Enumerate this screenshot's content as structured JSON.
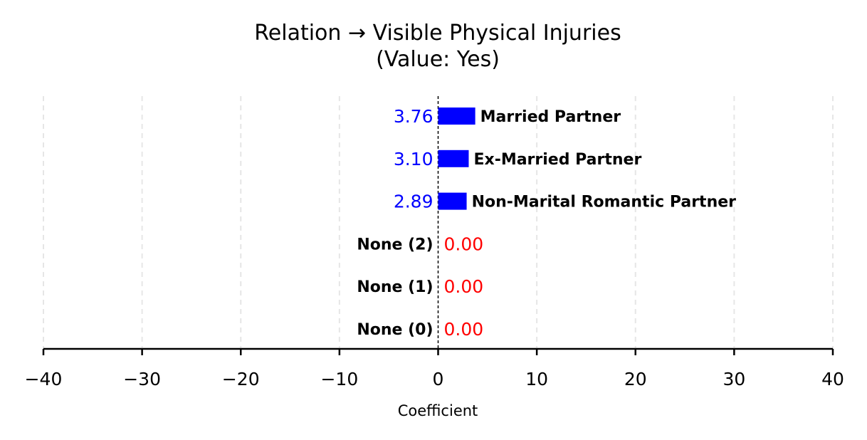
{
  "chart_data": {
    "type": "bar",
    "orientation": "horizontal",
    "title": "Relation → Visible Physical Injuries",
    "subtitle": "(Value: Yes)",
    "xlabel": "Coefficient",
    "ylabel": "",
    "xlim": [
      -40,
      40
    ],
    "xticks": [
      -40,
      -30,
      -20,
      -10,
      0,
      10,
      20,
      30,
      40
    ],
    "xtick_labels": [
      "−40",
      "−30",
      "−20",
      "−10",
      "0",
      "10",
      "20",
      "30",
      "40"
    ],
    "grid": "vertical dashed",
    "categories": [
      "Married Partner",
      "Ex-Married Partner",
      "Non-Marital Romantic Partner",
      "None (2)",
      "None (1)",
      "None (0)"
    ],
    "values": [
      3.76,
      3.1,
      2.89,
      0.0,
      0.0,
      0.0
    ],
    "value_labels": [
      "3.76",
      "3.10",
      "2.89",
      "0.00",
      "0.00",
      "0.00"
    ],
    "colors": {
      "positive_bar": "#0000ff",
      "positive_text": "#0000ff",
      "zero_text": "#ff0000",
      "grid": "#e6e6e6",
      "axis": "#000000"
    }
  }
}
